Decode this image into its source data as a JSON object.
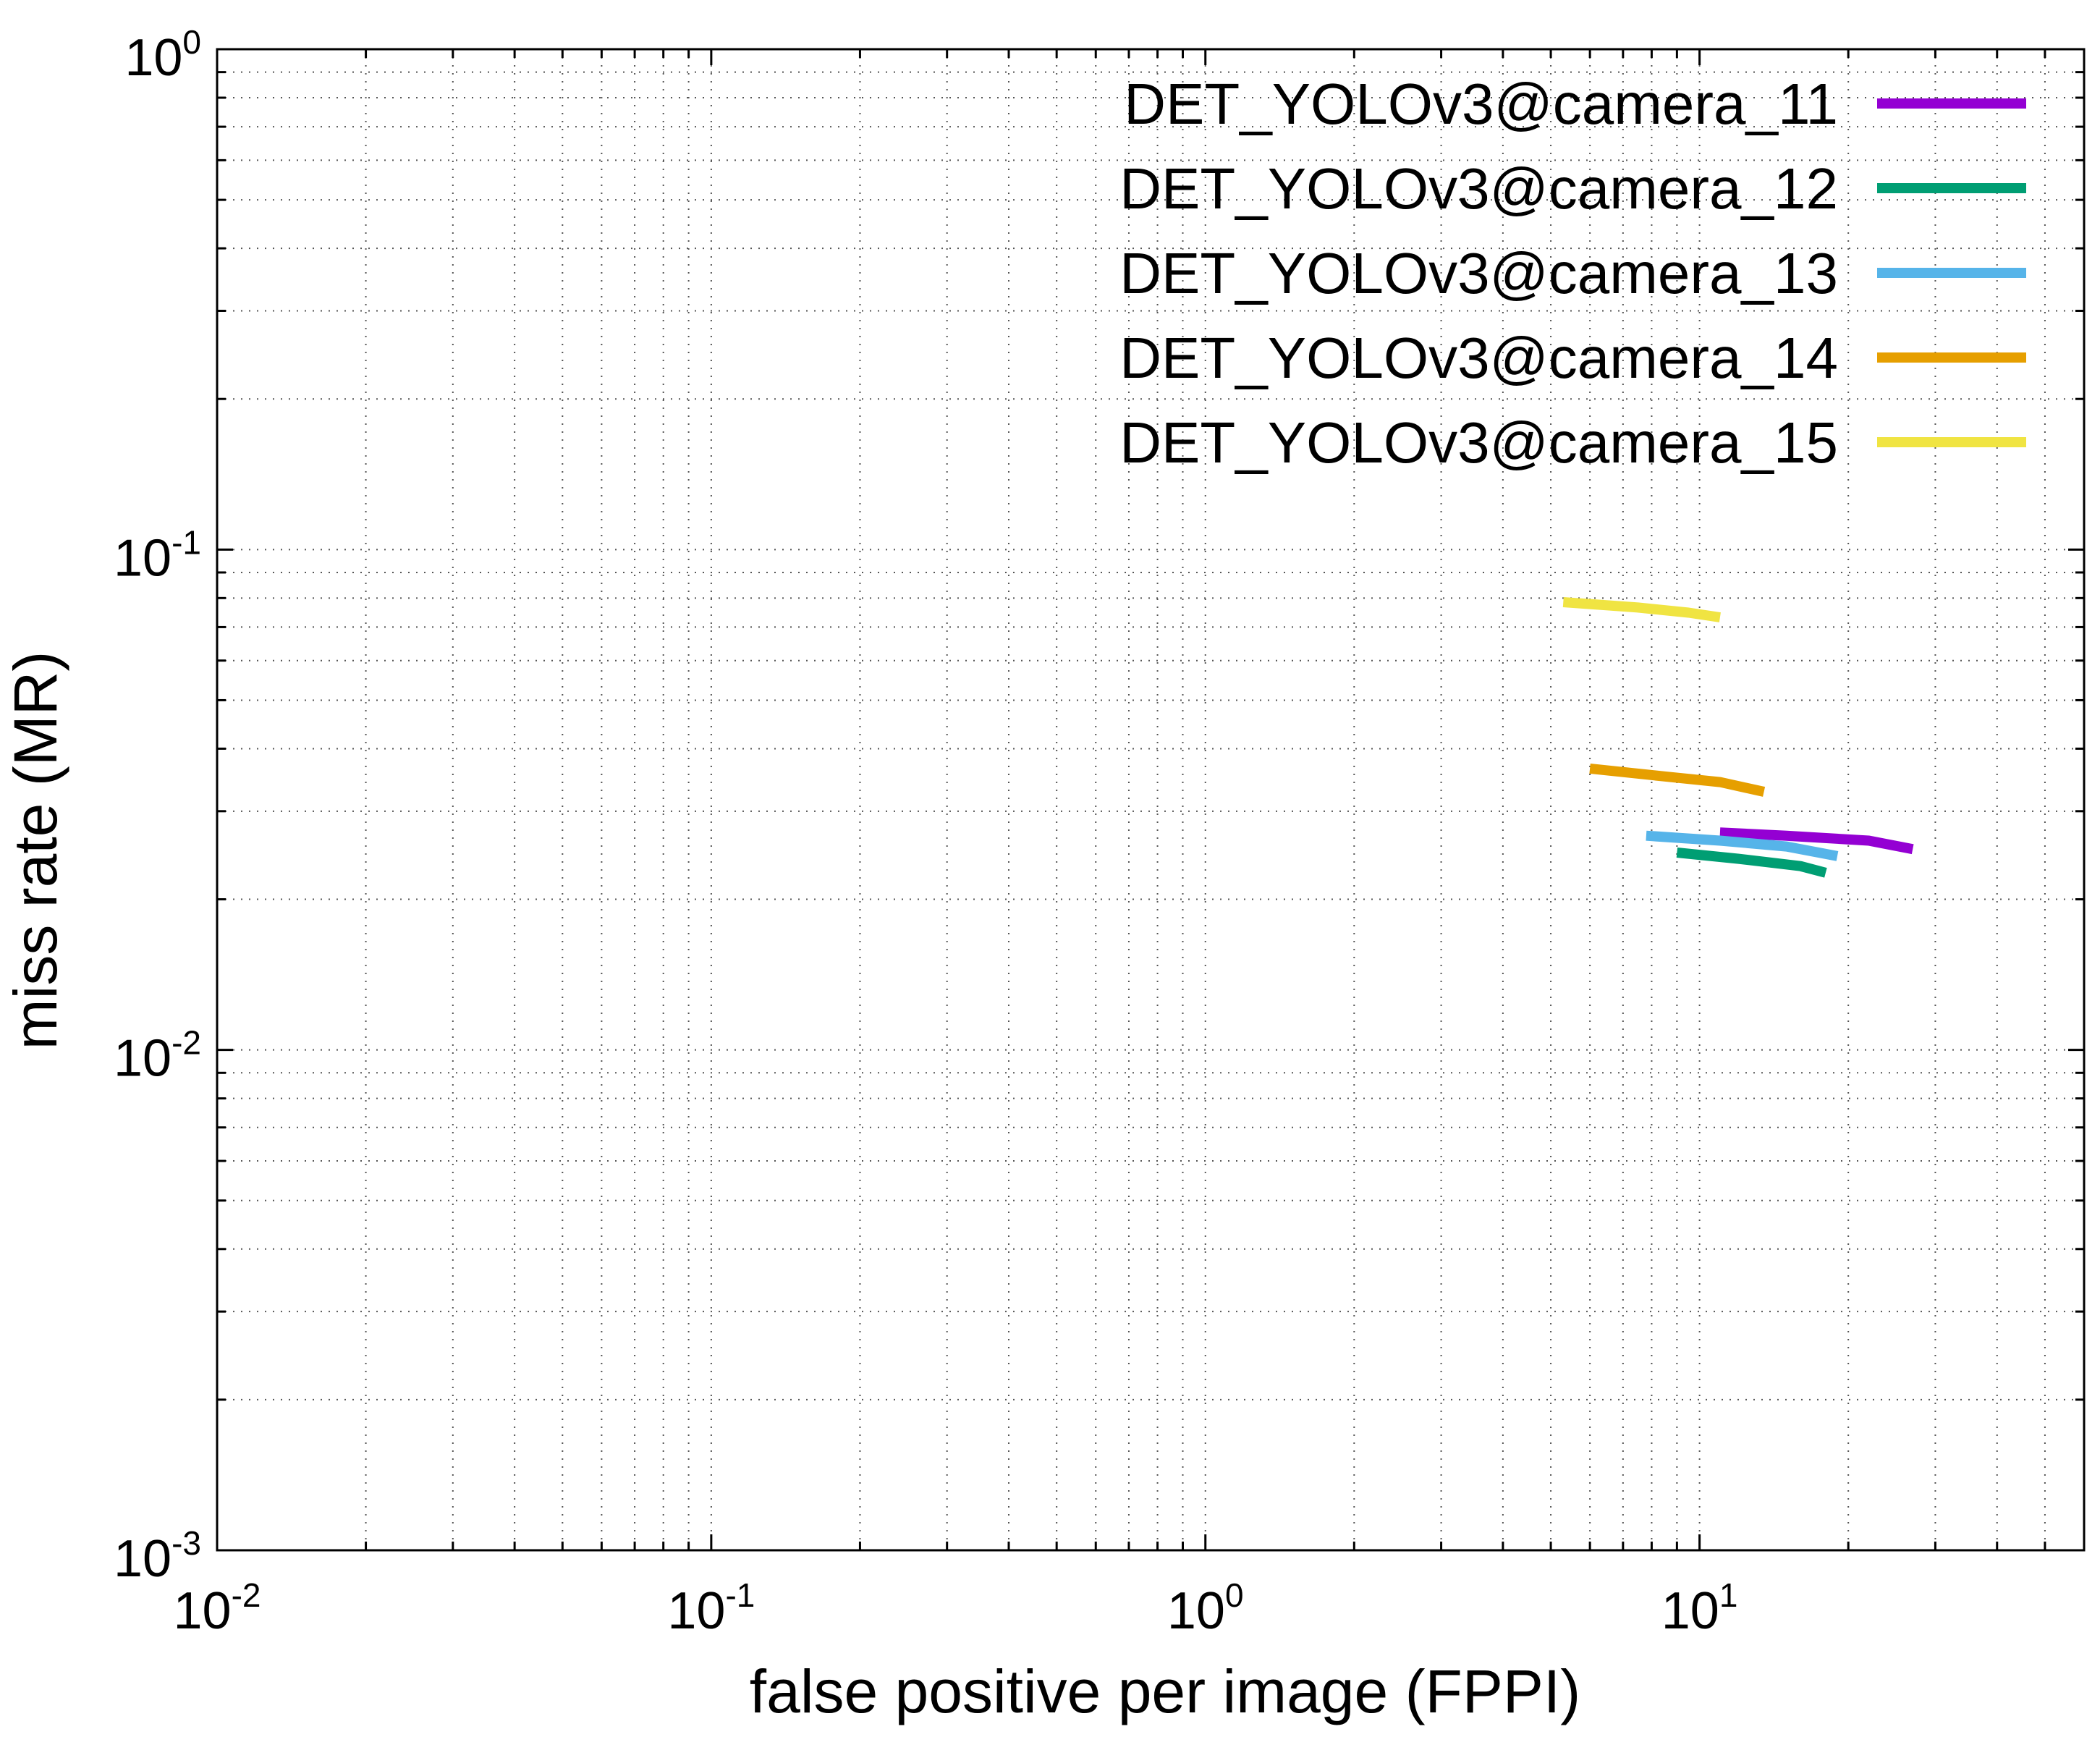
{
  "chart_data": {
    "type": "line",
    "title": "",
    "xlabel": "false positive per image (FPPI)",
    "ylabel": "miss rate (MR)",
    "xscale": "log",
    "yscale": "log",
    "xlim": [
      0.01,
      60
    ],
    "ylim": [
      0.001,
      1
    ],
    "grid": true,
    "legend_position": "top-right",
    "x_ticks": [
      {
        "value": 0.01,
        "base": "10",
        "exp": "-2"
      },
      {
        "value": 0.1,
        "base": "10",
        "exp": "-1"
      },
      {
        "value": 1,
        "base": "10",
        "exp": "0"
      },
      {
        "value": 10,
        "base": "10",
        "exp": "1"
      }
    ],
    "y_ticks": [
      {
        "value": 0.001,
        "base": "10",
        "exp": "-3"
      },
      {
        "value": 0.01,
        "base": "10",
        "exp": "-2"
      },
      {
        "value": 0.1,
        "base": "10",
        "exp": "-1"
      },
      {
        "value": 1,
        "base": "10",
        "exp": "0"
      }
    ],
    "series": [
      {
        "name": "DET_YOLOv3@camera_11",
        "color": "#9400d3",
        "x": [
          11.0,
          15.0,
          22.0,
          27.0
        ],
        "y": [
          0.0272,
          0.0268,
          0.0262,
          0.0252
        ]
      },
      {
        "name": "DET_YOLOv3@camera_12",
        "color": "#009e73",
        "x": [
          9.0,
          12.0,
          16.0,
          18.0
        ],
        "y": [
          0.0248,
          0.0241,
          0.0233,
          0.0226
        ]
      },
      {
        "name": "DET_YOLOv3@camera_13",
        "color": "#56b4e9",
        "x": [
          7.8,
          11.0,
          15.0,
          19.0
        ],
        "y": [
          0.0268,
          0.0262,
          0.0255,
          0.0244
        ]
      },
      {
        "name": "DET_YOLOv3@camera_14",
        "color": "#e69f00",
        "x": [
          6.0,
          8.5,
          11.0,
          13.5
        ],
        "y": [
          0.0365,
          0.0352,
          0.0343,
          0.0328
        ]
      },
      {
        "name": "DET_YOLOv3@camera_15",
        "color": "#f0e442",
        "x": [
          5.3,
          7.5,
          9.5,
          11.0
        ],
        "y": [
          0.0785,
          0.0766,
          0.0748,
          0.0732
        ]
      }
    ]
  }
}
